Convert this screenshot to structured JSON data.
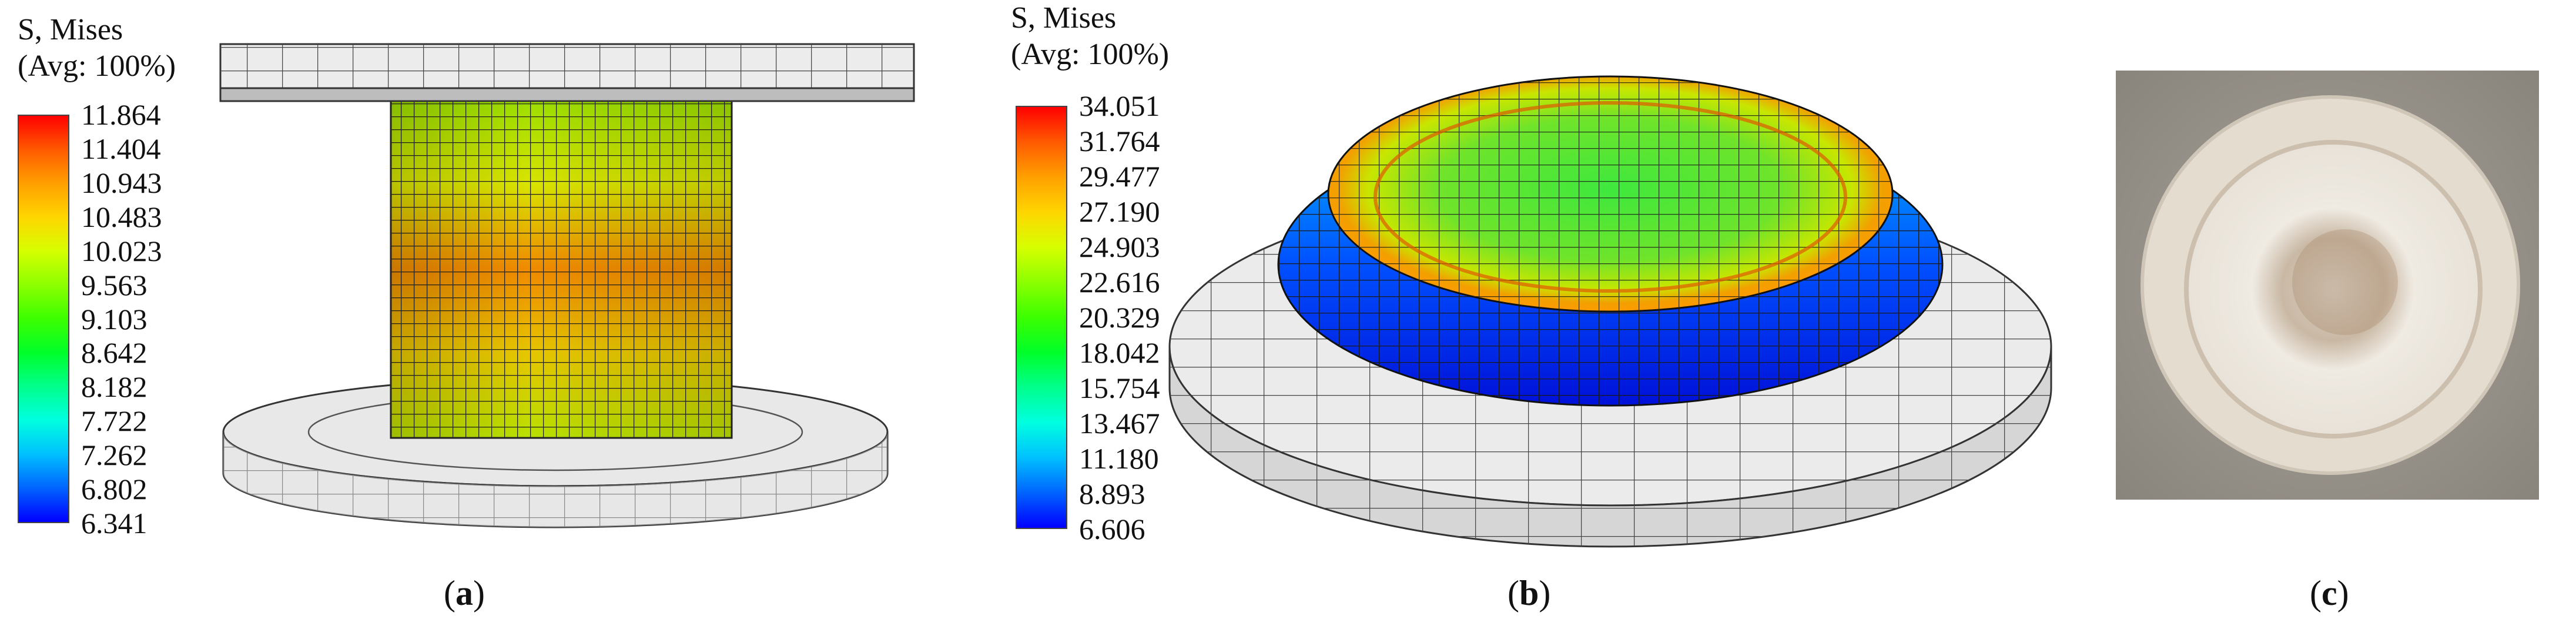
{
  "panels": [
    {
      "id": "a",
      "legend_title": [
        "S, Mises",
        "(Avg: 100%)"
      ],
      "legend_values": [
        "11.864",
        "11.404",
        "10.943",
        "10.483",
        "10.023",
        "9.563",
        "9.103",
        "8.642",
        "8.182",
        "7.722",
        "7.262",
        "6.802",
        "6.341"
      ],
      "caption": "a"
    },
    {
      "id": "b",
      "legend_title": [
        "S, Mises",
        "(Avg: 100%)"
      ],
      "legend_values": [
        "34.051",
        "31.764",
        "29.477",
        "27.190",
        "24.903",
        "22.616",
        "20.329",
        "18.042",
        "15.754",
        "13.467",
        "11.180",
        "8.893",
        "6.606"
      ],
      "caption": "b"
    },
    {
      "id": "c",
      "caption": "c"
    }
  ],
  "colors": {
    "scale": [
      "#ff0000",
      "#ff5a00",
      "#ffa000",
      "#ffd600",
      "#d6ff00",
      "#8cff00",
      "#3cff00",
      "#00ff2a",
      "#00ff8c",
      "#00ffe0",
      "#00c0ff",
      "#0064ff",
      "#0000ff"
    ],
    "mesh_gray": "#e6e6e6",
    "photo_bg": "#9a958d",
    "disc": "#e9e2d7"
  }
}
